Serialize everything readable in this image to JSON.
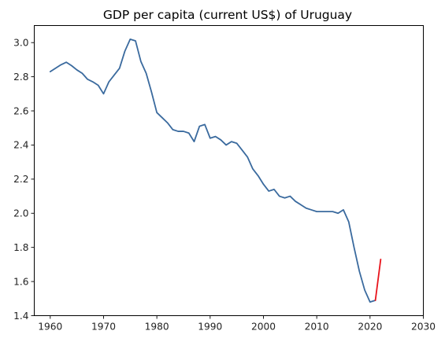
{
  "chart_data": {
    "type": "line",
    "title": "GDP per capita (current US$) of Uruguay",
    "xlabel": "",
    "ylabel": "",
    "xlim": [
      1957,
      2030
    ],
    "ylim": [
      1.4,
      3.1
    ],
    "xticks": [
      1960,
      1970,
      1980,
      1990,
      2000,
      2010,
      2020,
      2030
    ],
    "yticks": [
      1.4,
      1.6,
      1.8,
      2.0,
      2.2,
      2.4,
      2.6,
      2.8,
      3.0
    ],
    "grid": false,
    "colors": {
      "series": "#3a6a9e",
      "highlight": "#e8141c"
    },
    "series": [
      {
        "color": "#3a6a9e",
        "x": [
          1960,
          1961,
          1962,
          1963,
          1964,
          1965,
          1966,
          1967,
          1968,
          1969,
          1970,
          1971,
          1972,
          1973,
          1974,
          1975,
          1976,
          1977,
          1978,
          1979,
          1980,
          1981,
          1982,
          1983,
          1984,
          1985,
          1986,
          1987,
          1988,
          1989,
          1990,
          1991,
          1992,
          1993,
          1994,
          1995,
          1996,
          1997,
          1998,
          1999,
          2000,
          2001,
          2002,
          2003,
          2004,
          2005,
          2006,
          2007,
          2008,
          2009,
          2010,
          2011,
          2012,
          2013,
          2014,
          2015,
          2016,
          2017,
          2018,
          2019,
          2020,
          2021
        ],
        "y": [
          2.83,
          2.85,
          2.87,
          2.885,
          2.865,
          2.84,
          2.82,
          2.785,
          2.77,
          2.75,
          2.7,
          2.77,
          2.81,
          2.85,
          2.95,
          3.02,
          3.01,
          2.89,
          2.82,
          2.71,
          2.59,
          2.56,
          2.53,
          2.49,
          2.48,
          2.48,
          2.47,
          2.42,
          2.51,
          2.52,
          2.44,
          2.45,
          2.43,
          2.4,
          2.42,
          2.41,
          2.37,
          2.33,
          2.26,
          2.22,
          2.17,
          2.13,
          2.14,
          2.1,
          2.09,
          2.1,
          2.07,
          2.05,
          2.03,
          2.02,
          2.01,
          2.01,
          2.01,
          2.01,
          2.0,
          2.02,
          1.95,
          1.8,
          1.66,
          1.55,
          1.48,
          1.49
        ]
      },
      {
        "color": "#e8141c",
        "x": [
          2021,
          2022
        ],
        "y": [
          1.49,
          1.73
        ]
      }
    ]
  }
}
